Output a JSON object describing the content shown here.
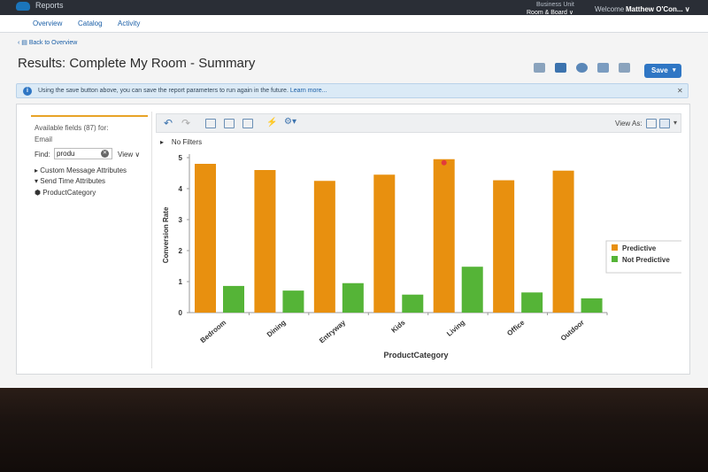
{
  "topbar": {
    "app_name": "Reports",
    "business_unit_label": "Business Unit",
    "business_unit_value": "Room & Board ∨",
    "welcome": "Welcome",
    "user": "Matthew O'Con... ∨"
  },
  "nav": {
    "tabs": [
      {
        "label": "Overview"
      },
      {
        "label": "Catalog"
      },
      {
        "label": "Activity"
      }
    ]
  },
  "breadcrumb": {
    "back": "Back to Overview"
  },
  "page": {
    "title": "Results: Complete My Room - Summary"
  },
  "toolbar": {
    "save_label": "Save",
    "icons": [
      "email-icon",
      "share-icon",
      "download-icon",
      "chart-icon",
      "schedule-icon"
    ]
  },
  "info_banner": {
    "message": "Using the save button above, you can save the report parameters to run again in the future.",
    "link": "Learn more...",
    "close": "✕"
  },
  "fields": {
    "available": "Available fields (87) for:",
    "source": "Email",
    "find_label": "Find:",
    "find_value": "produ",
    "view_label": "View ∨",
    "tree": [
      "▸ Custom Message Attributes",
      "▾ Send Time Attributes",
      "⬢ ProductCategory"
    ]
  },
  "chart_toolbar": {
    "view_as": "View As:"
  },
  "filters": {
    "label": "No Filters"
  },
  "colors": {
    "predictive": "#e8900f",
    "not_predictive": "#55b437",
    "accent": "#e8a327",
    "brand": "#2f76c4"
  },
  "chart_data": {
    "type": "bar",
    "categories": [
      "Bedroom",
      "Dining",
      "Entryway",
      "Kids",
      "Living",
      "Office",
      "Outdoor"
    ],
    "series": [
      {
        "name": "Predictive",
        "values": [
          4.8,
          4.6,
          4.25,
          4.45,
          4.95,
          4.27,
          4.58
        ]
      },
      {
        "name": "Not Predictive",
        "values": [
          0.86,
          0.71,
          0.95,
          0.58,
          1.48,
          0.65,
          0.46
        ]
      }
    ],
    "xlabel": "ProductCategory",
    "ylabel": "Conversion Rate",
    "ylim": [
      0,
      5
    ],
    "yticks": [
      "0",
      "1",
      "2",
      "3",
      "4",
      "5"
    ],
    "legend_position": "right",
    "grid": false
  }
}
